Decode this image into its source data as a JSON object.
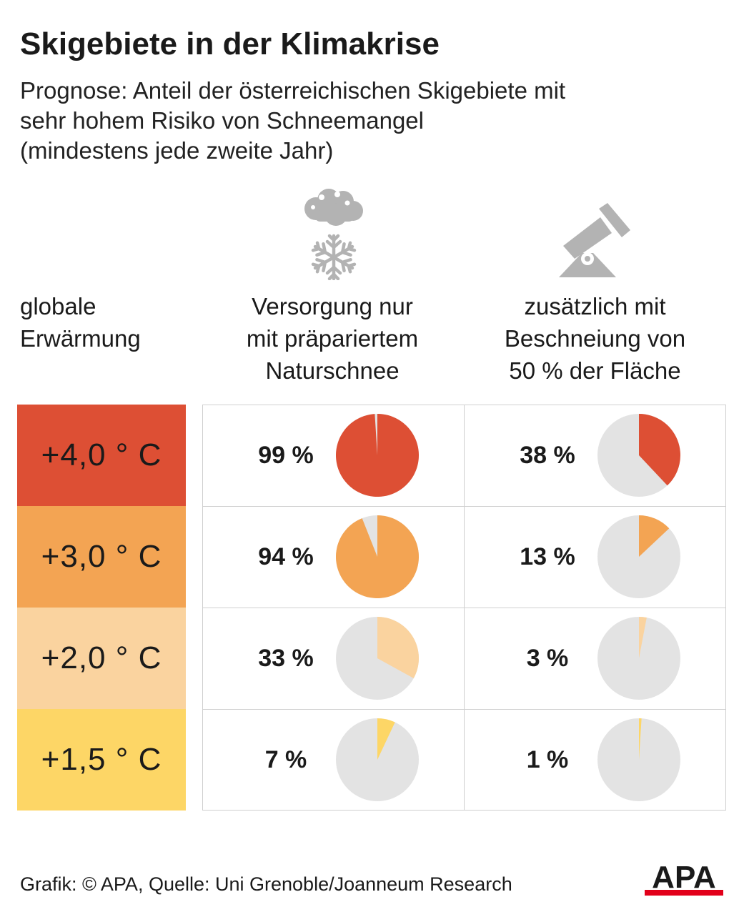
{
  "title": "Skigebiete in der Klimakrise",
  "subtitle": [
    "Prognose: Anteil der österreichischen Skigebiete mit",
    "sehr hohem Risiko von Schneemangel",
    "(mindestens jede zweite Jahr)"
  ],
  "icons": {
    "natural_snow": "cloud-snowflake-icon",
    "snowmaking": "snow-cannon-icon"
  },
  "columns": {
    "warming": [
      "globale",
      "Erwärmung"
    ],
    "natural": [
      "Versorgung nur",
      "mit präpariertem",
      "Naturschnee"
    ],
    "snowmaking": [
      "zusätzlich mit",
      "Beschneiung von",
      "50 % der Fläche"
    ]
  },
  "colors": {
    "pie_background": "#e3e3e3",
    "grid_border": "#cfcfcf",
    "rows": [
      "#dd4f34",
      "#f3a453",
      "#fad39f",
      "#fdd666"
    ]
  },
  "chart_data": {
    "type": "pie",
    "title": "Skigebiete in der Klimakrise",
    "categories": [
      "+4,0 ° C",
      "+3,0 ° C",
      "+2,0 ° C",
      "+1,5 ° C"
    ],
    "series": [
      {
        "name": "Versorgung nur mit präpariertem Naturschnee",
        "values": [
          99,
          94,
          33,
          7
        ],
        "labels": [
          "99 %",
          "94 %",
          "33 %",
          "7 %"
        ]
      },
      {
        "name": "zusätzlich mit Beschneiung von 50 % der Fläche",
        "values": [
          38,
          13,
          3,
          1
        ],
        "labels": [
          "38 %",
          "13 %",
          "3 %",
          "1 %"
        ]
      }
    ],
    "unit": "%"
  },
  "footer": "Grafik: © APA, Quelle: Uni Grenoble/Joanneum Research",
  "logo": {
    "text": "APA",
    "text_color": "#1a1a1a",
    "bar_color": "#e2001a"
  }
}
